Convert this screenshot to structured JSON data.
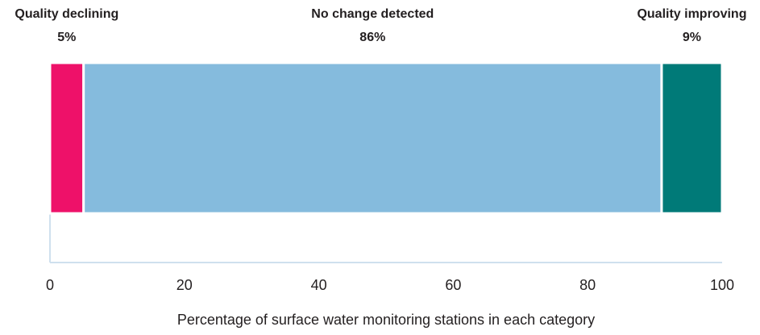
{
  "chart_data": {
    "type": "stacked_bar",
    "series": [
      {
        "name": "Quality declining",
        "color": "#ee1169",
        "values": [
          5
        ],
        "value_labels": [
          "5%"
        ]
      },
      {
        "name": "No change detected",
        "color": "#85bbdd",
        "values": [
          86
        ],
        "value_labels": [
          "86%"
        ]
      },
      {
        "name": "Quality improving",
        "color": "#007a78",
        "values": [
          9
        ],
        "value_labels": [
          "9%"
        ]
      }
    ],
    "xlabel": "Percentage of surface water monitoring stations in each category",
    "xlim": [
      0,
      100
    ],
    "xticks": [
      0,
      20,
      40,
      60,
      80,
      100
    ]
  }
}
